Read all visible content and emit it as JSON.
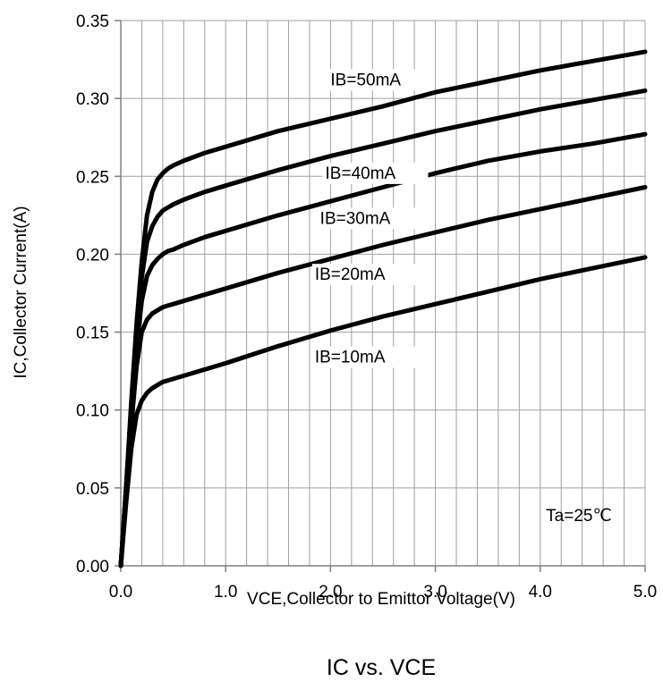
{
  "chart_data": {
    "type": "line",
    "title": "IC vs. VCE",
    "xlabel": "VCE,Collector to Emittor Voltage(V)",
    "ylabel": "IC,Collector Current(A)",
    "xlim": [
      0,
      5
    ],
    "ylim": [
      0,
      0.35
    ],
    "x_ticks": [
      "0.0",
      "1.0",
      "2.0",
      "3.0",
      "4.0",
      "5.0"
    ],
    "y_ticks": [
      "0.00",
      "0.05",
      "0.10",
      "0.15",
      "0.20",
      "0.25",
      "0.30",
      "0.35"
    ],
    "x_tick_values": [
      0,
      1,
      2,
      3,
      4,
      5
    ],
    "y_tick_values": [
      0,
      0.05,
      0.1,
      0.15,
      0.2,
      0.25,
      0.3,
      0.35
    ],
    "x_minor_step": 0.2,
    "y_grid_step": 0.05,
    "grid": true,
    "annotation": "Ta=25℃",
    "series": [
      {
        "name": "IB=50mA",
        "x": [
          0,
          0.05,
          0.1,
          0.15,
          0.2,
          0.25,
          0.3,
          0.35,
          0.4,
          0.45,
          0.5,
          0.6,
          0.8,
          1.0,
          1.5,
          2.0,
          2.5,
          3.0,
          3.5,
          4.0,
          4.5,
          5.0
        ],
        "y": [
          0,
          0.05,
          0.105,
          0.155,
          0.195,
          0.225,
          0.24,
          0.248,
          0.252,
          0.255,
          0.257,
          0.26,
          0.265,
          0.269,
          0.279,
          0.287,
          0.295,
          0.304,
          0.311,
          0.318,
          0.324,
          0.33
        ]
      },
      {
        "name": "IB=40mA",
        "x": [
          0,
          0.05,
          0.1,
          0.15,
          0.2,
          0.25,
          0.3,
          0.35,
          0.4,
          0.45,
          0.5,
          0.6,
          0.8,
          1.0,
          1.5,
          2.0,
          2.5,
          3.0,
          3.5,
          4.0,
          4.5,
          5.0
        ],
        "y": [
          0,
          0.05,
          0.1,
          0.148,
          0.185,
          0.208,
          0.218,
          0.224,
          0.228,
          0.23,
          0.232,
          0.235,
          0.24,
          0.244,
          0.254,
          0.263,
          0.271,
          0.279,
          0.286,
          0.293,
          0.299,
          0.305
        ]
      },
      {
        "name": "IB=30mA",
        "x": [
          0,
          0.05,
          0.1,
          0.15,
          0.2,
          0.25,
          0.3,
          0.35,
          0.4,
          0.45,
          0.5,
          0.6,
          0.8,
          1.0,
          1.5,
          2.0,
          2.5,
          3.0,
          3.5,
          4.0,
          4.5,
          5.0
        ],
        "y": [
          0,
          0.048,
          0.095,
          0.14,
          0.17,
          0.186,
          0.193,
          0.197,
          0.2,
          0.202,
          0.203,
          0.206,
          0.211,
          0.215,
          0.225,
          0.234,
          0.243,
          0.252,
          0.26,
          0.266,
          0.271,
          0.277
        ]
      },
      {
        "name": "IB=20mA",
        "x": [
          0,
          0.05,
          0.1,
          0.15,
          0.2,
          0.25,
          0.3,
          0.35,
          0.4,
          0.45,
          0.5,
          0.6,
          0.8,
          1.0,
          1.5,
          2.0,
          2.5,
          3.0,
          3.5,
          4.0,
          4.5,
          5.0
        ],
        "y": [
          0,
          0.045,
          0.09,
          0.128,
          0.15,
          0.158,
          0.162,
          0.164,
          0.166,
          0.167,
          0.168,
          0.17,
          0.174,
          0.178,
          0.188,
          0.197,
          0.206,
          0.214,
          0.222,
          0.229,
          0.236,
          0.243
        ]
      },
      {
        "name": "IB=10mA",
        "x": [
          0,
          0.05,
          0.1,
          0.15,
          0.2,
          0.25,
          0.3,
          0.35,
          0.4,
          0.45,
          0.5,
          0.6,
          0.8,
          1.0,
          1.5,
          2.0,
          2.5,
          3.0,
          3.5,
          4.0,
          4.5,
          5.0
        ],
        "y": [
          0,
          0.04,
          0.075,
          0.097,
          0.106,
          0.111,
          0.114,
          0.116,
          0.118,
          0.119,
          0.12,
          0.122,
          0.126,
          0.13,
          0.141,
          0.151,
          0.16,
          0.168,
          0.176,
          0.184,
          0.191,
          0.198
        ]
      }
    ],
    "curve_label_positions": [
      {
        "name": "IB=50mA",
        "x": 2.0,
        "y": 0.3085
      },
      {
        "name": "IB=40mA",
        "x": 1.95,
        "y": 0.2485
      },
      {
        "name": "IB=30mA",
        "x": 1.9,
        "y": 0.2195
      },
      {
        "name": "IB=20mA",
        "x": 1.85,
        "y": 0.1835
      },
      {
        "name": "IB=10mA",
        "x": 1.85,
        "y": 0.1305
      }
    ]
  }
}
